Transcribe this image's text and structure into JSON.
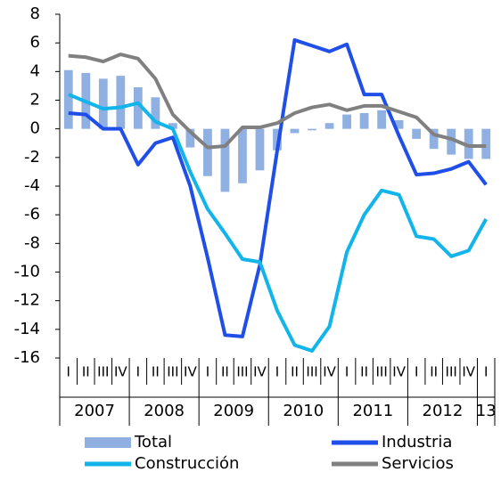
{
  "chart_data": {
    "type": "bar-line",
    "categories": [
      "I",
      "II",
      "III",
      "IV",
      "I",
      "II",
      "III",
      "IV",
      "I",
      "II",
      "III",
      "IV",
      "I",
      "II",
      "III",
      "IV",
      "I",
      "II",
      "III",
      "IV",
      "I",
      "II",
      "III",
      "IV",
      "I"
    ],
    "years": [
      "2007",
      "2008",
      "2009",
      "2010",
      "2011",
      "2012",
      "13"
    ],
    "series": [
      {
        "name": "Total",
        "type": "bar",
        "color": "#8fb0e0",
        "values": [
          4.1,
          3.9,
          3.5,
          3.7,
          2.9,
          2.2,
          0.4,
          -1.3,
          -3.3,
          -4.4,
          -3.8,
          -2.9,
          -1.5,
          -0.3,
          -0.1,
          0.4,
          1.0,
          1.1,
          1.3,
          0.6,
          -0.7,
          -1.4,
          -1.8,
          -2.1,
          -2.1
        ]
      },
      {
        "name": "Industria",
        "type": "line",
        "color": "#1f4fe8",
        "values": [
          1.1,
          1.0,
          0.0,
          0.0,
          -2.5,
          -1.0,
          -0.6,
          -4.0,
          -9.0,
          -14.4,
          -14.5,
          -9.5,
          -1.5,
          6.2,
          5.8,
          5.4,
          5.9,
          2.4,
          2.4,
          -0.5,
          -3.2,
          -3.1,
          -2.8,
          -2.3,
          -3.9
        ]
      },
      {
        "name": "Construcción",
        "type": "line",
        "color": "#12b4ea",
        "values": [
          2.4,
          1.9,
          1.4,
          1.5,
          1.8,
          0.5,
          0.0,
          -3.0,
          -5.6,
          -7.3,
          -9.1,
          -9.3,
          -12.7,
          -15.1,
          -15.5,
          -13.8,
          -8.6,
          -6.0,
          -4.3,
          -4.6,
          -7.5,
          -7.7,
          -8.9,
          -8.5,
          -6.3
        ]
      },
      {
        "name": "Servicios",
        "type": "line",
        "color": "#808080",
        "values": [
          5.1,
          5.0,
          4.7,
          5.2,
          4.9,
          3.5,
          1.0,
          -0.2,
          -1.3,
          -1.2,
          0.1,
          0.1,
          0.4,
          1.1,
          1.5,
          1.7,
          1.3,
          1.6,
          1.6,
          1.2,
          0.8,
          -0.4,
          -0.7,
          -1.2,
          -1.2
        ]
      }
    ],
    "ylim": [
      -16,
      8
    ],
    "yticks": [
      -16,
      -14,
      -12,
      -10,
      -8,
      -6,
      -4,
      -2,
      0,
      2,
      4,
      6,
      8
    ],
    "grid": false
  }
}
